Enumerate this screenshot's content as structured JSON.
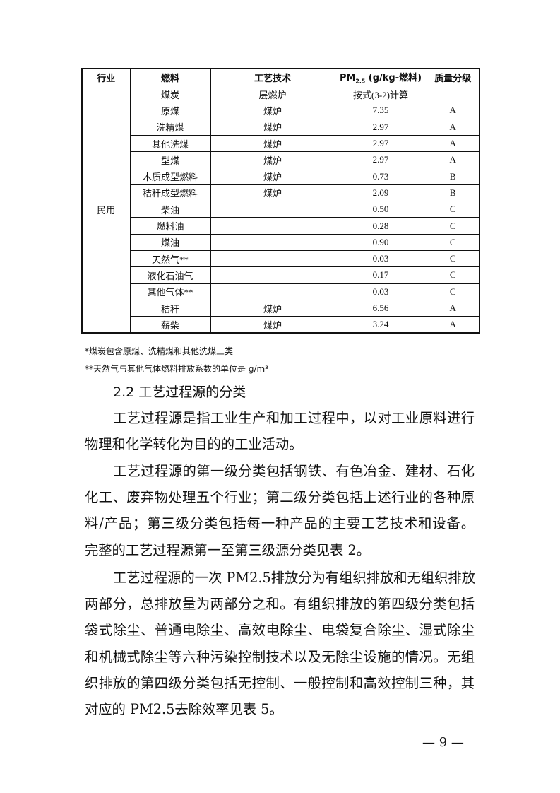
{
  "table": {
    "headers": [
      "行业",
      "燃料",
      "工艺技术",
      "PM2.5 (g/kg-燃料)",
      "质量分级"
    ],
    "industry": "民用",
    "rows": [
      [
        "煤炭",
        "层燃炉",
        "按式(3-2)计算",
        ""
      ],
      [
        "原煤",
        "煤炉",
        "7.35",
        "A"
      ],
      [
        "洗精煤",
        "煤炉",
        "2.97",
        "A"
      ],
      [
        "其他洗煤",
        "煤炉",
        "2.97",
        "A"
      ],
      [
        "型煤",
        "煤炉",
        "2.97",
        "A"
      ],
      [
        "木质成型燃料",
        "煤炉",
        "0.73",
        "B"
      ],
      [
        "秸秆成型燃料",
        "煤炉",
        "2.09",
        "B"
      ],
      [
        "柴油",
        "",
        "0.50",
        "C"
      ],
      [
        "燃料油",
        "",
        "0.28",
        "C"
      ],
      [
        "煤油",
        "",
        "0.90",
        "C"
      ],
      [
        "天然气**",
        "",
        "0.03",
        "C"
      ],
      [
        "液化石油气",
        "",
        "0.17",
        "C"
      ],
      [
        "其他气体**",
        "",
        "0.03",
        "C"
      ],
      [
        "秸秆",
        "煤炉",
        "6.56",
        "A"
      ],
      [
        "薪柴",
        "煤炉",
        "3.24",
        "A"
      ]
    ]
  },
  "notes": [
    "*煤炭包含原煤、洗精煤和其他洗煤三类",
    "**天然气与其他气体燃料排放系数的单位是 g/m³"
  ],
  "section_title": "2.2  工艺过程源的分类",
  "paragraphs": [
    [
      "工艺过程源是指工业生产和加工过程中，以对工业原料进行",
      "物理和化学转化为目的的工业活动。"
    ],
    [
      "工艺过程源的第一级分类包括钢铁、有色冶金、建材、石化",
      "化工、废弃物处理五个行业；第二级分类包括上述行业的各种原",
      "料/产品；第三级分类包括每一种产品的主要工艺技术和设备。",
      "完整的工艺过程源第一至第三级源分类见表 2。"
    ],
    [
      "工艺过程源的一次 PM2.5排放分为有组织排放和无组织排放",
      "两部分，总排放量为两部分之和。有组织排放的第四级分类包括",
      "袋式除尘、普通电除尘、高效电除尘、电袋复合除尘、湿式除尘",
      "和机械式除尘等六种污染控制技术以及无除尘设施的情况。无组",
      "织排放的第四级分类包括无控制、一般控制和高效控制三种，其",
      "对应的 PM2.5去除效率见表 5。"
    ]
  ],
  "page_number": "— 9 —"
}
